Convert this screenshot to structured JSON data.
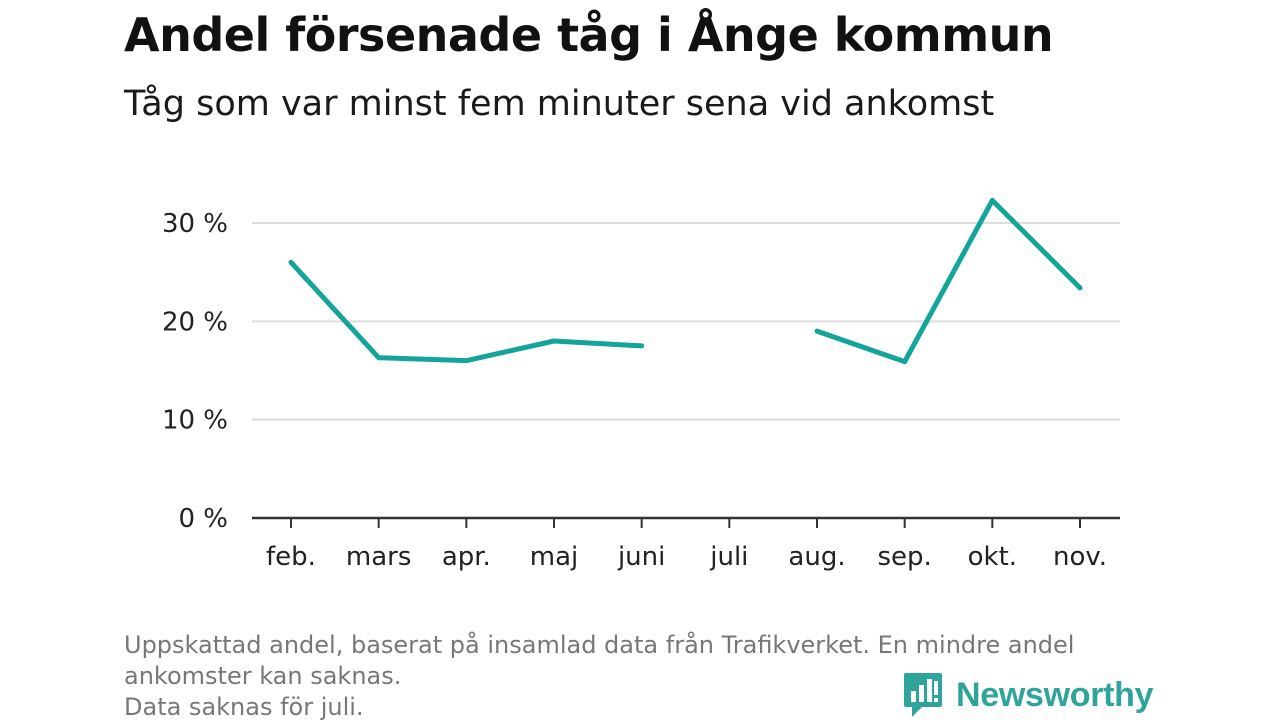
{
  "header": {
    "title": "Andel försenade tåg i Ånge kommun",
    "subtitle": "Tåg som var minst fem minuter sena vid ankomst"
  },
  "chart_data": {
    "type": "line",
    "title": "Andel försenade tåg i Ånge kommun",
    "subtitle": "Tåg som var minst fem minuter sena vid ankomst",
    "categories": [
      "feb.",
      "mars",
      "apr.",
      "maj",
      "juni",
      "juli",
      "aug.",
      "sep.",
      "okt.",
      "nov."
    ],
    "series": [
      {
        "values": [
          26.0,
          16.3,
          16.0,
          18.0,
          17.5,
          null,
          19.0,
          15.9,
          32.3,
          23.4
        ]
      }
    ],
    "yticks": [
      0,
      10,
      20,
      30
    ],
    "ytick_labels": [
      "0 %",
      "10 %",
      "20 %",
      "30 %"
    ],
    "ylim": [
      0,
      35
    ],
    "xlabel": "",
    "ylabel": "",
    "grid": true,
    "line_color": "#13a59a",
    "grid_color": "#dddddd",
    "axis_color": "#333333"
  },
  "footer": {
    "note_lines": [
      "Uppskattad andel, baserat på insamlad data från Trafikverket. En mindre andel",
      "ankomster kan saknas.",
      "Data saknas för juli."
    ],
    "brand": {
      "name": "Newsworthy",
      "icon": "newsworthy-logo-icon",
      "color": "#2fa49a"
    }
  }
}
